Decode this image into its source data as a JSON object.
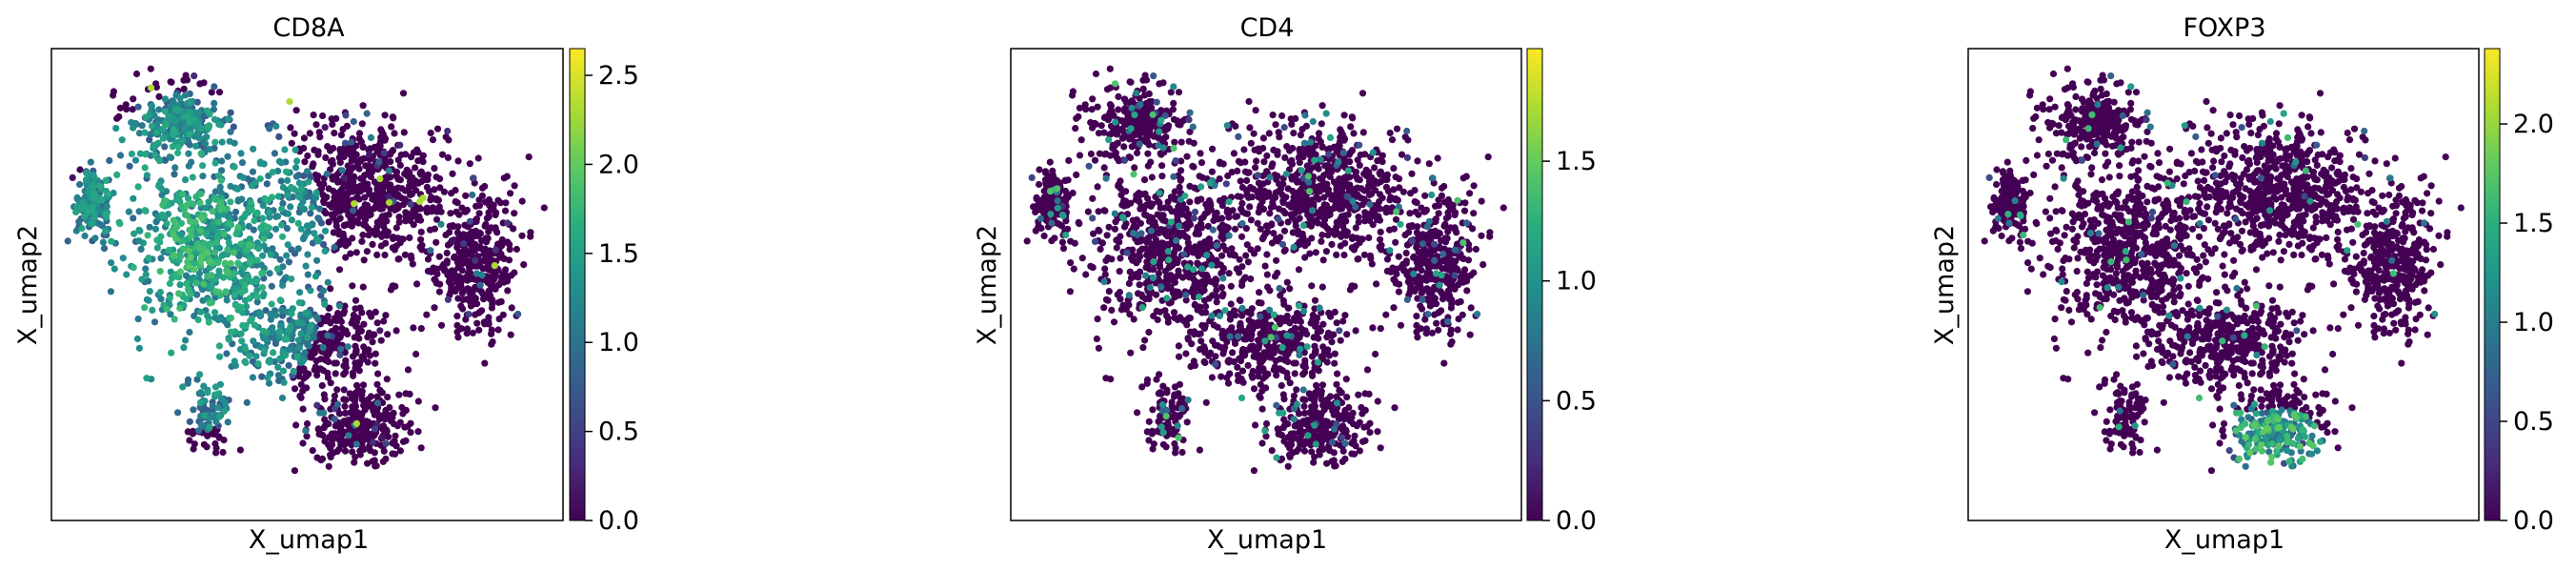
{
  "chart_data": [
    {
      "type": "scatter",
      "title": "CD8A",
      "xlabel": "X_umap1",
      "ylabel": "X_umap2",
      "colorbar": {
        "colormap": "viridis",
        "range": [
          0,
          2.65
        ],
        "ticks": [
          "0.0",
          "0.5",
          "1.0",
          "1.5",
          "2.0",
          "2.5"
        ],
        "tick_values": [
          0,
          0.5,
          1.0,
          1.5,
          2.0,
          2.5
        ]
      },
      "expression_hotspot": {
        "region": "left lobe",
        "level": 1.6
      }
    },
    {
      "type": "scatter",
      "title": "CD4",
      "xlabel": "X_umap1",
      "ylabel": "X_umap2",
      "colorbar": {
        "colormap": "viridis",
        "range": [
          0,
          1.97
        ],
        "ticks": [
          "0.0",
          "0.5",
          "1.0",
          "1.5"
        ],
        "tick_values": [
          0,
          0.5,
          1.0,
          1.5
        ]
      },
      "expression_hotspot": {
        "region": "scattered",
        "level": 0.6
      }
    },
    {
      "type": "scatter",
      "title": "FOXP3",
      "xlabel": "X_umap1",
      "ylabel": "X_umap2",
      "colorbar": {
        "colormap": "viridis",
        "range": [
          0,
          2.38
        ],
        "ticks": [
          "0.0",
          "0.5",
          "1.0",
          "1.5",
          "2.0"
        ],
        "tick_values": [
          0,
          0.5,
          1.0,
          1.5,
          2.0
        ]
      },
      "expression_hotspot": {
        "region": "bottom tail",
        "level": 1.4
      }
    }
  ]
}
